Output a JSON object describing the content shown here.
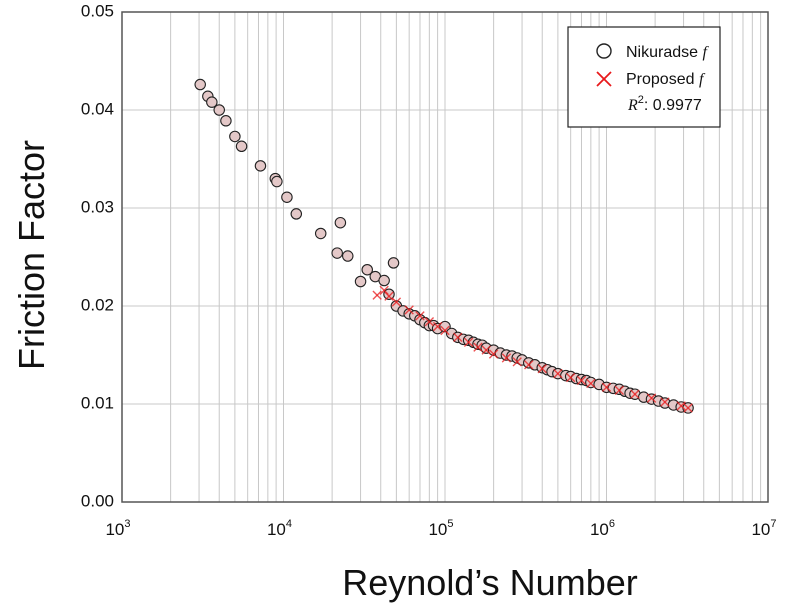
{
  "chart_data": {
    "type": "scatter",
    "xlabel": "Reynold’s Number",
    "ylabel": "Friction Factor",
    "x_scale": "log",
    "xlim": [
      1000,
      10000000
    ],
    "ylim": [
      0,
      0.05
    ],
    "x_ticks": [
      {
        "base": "10",
        "exp": "3"
      },
      {
        "base": "10",
        "exp": "4"
      },
      {
        "base": "10",
        "exp": "5"
      },
      {
        "base": "10",
        "exp": "6"
      },
      {
        "base": "10",
        "exp": "7"
      }
    ],
    "y_ticks": [
      "0.00",
      "0.01",
      "0.02",
      "0.03",
      "0.04",
      "0.05"
    ],
    "y_tick_values": [
      0,
      0.01,
      0.02,
      0.03,
      0.04,
      0.05
    ],
    "grid": true,
    "legend": {
      "position": "top-right",
      "nikuradse_label": "Nikuradse",
      "nikuradse_symbol": "f",
      "proposed_label": "Proposed",
      "proposed_symbol": "f",
      "r2_symbol": "R",
      "r2_power": "2",
      "r2_value": ": 0.9977"
    },
    "colors": {
      "nikuradse": "#222222",
      "nikuradse_fill": "#e4c8c8",
      "proposed": "#e8191b",
      "grid": "#c8c8c8"
    },
    "series": [
      {
        "name": "Nikuradse f",
        "marker": "circle",
        "x": [
          3050,
          3400,
          3600,
          4000,
          4400,
          5000,
          5500,
          7200,
          8900,
          9100,
          10500,
          12000,
          17000,
          21500,
          22500,
          25000,
          30000,
          33000,
          37000,
          42000,
          45000,
          48000,
          50000,
          55000,
          60000,
          65000,
          70000,
          75000,
          80000,
          85000,
          90000,
          100000,
          110000,
          120000,
          130000,
          140000,
          150000,
          160000,
          170000,
          180000,
          200000,
          220000,
          240000,
          260000,
          280000,
          300000,
          330000,
          360000,
          400000,
          430000,
          460000,
          500000,
          560000,
          600000,
          650000,
          700000,
          750000,
          800000,
          900000,
          1000000,
          1100000,
          1200000,
          1300000,
          1400000,
          1500000,
          1700000,
          1900000,
          2100000,
          2300000,
          2600000,
          2900000,
          3200000
        ],
        "y": [
          0.0426,
          0.0414,
          0.0408,
          0.04,
          0.0389,
          0.0373,
          0.0363,
          0.0343,
          0.033,
          0.0327,
          0.0311,
          0.0294,
          0.0274,
          0.0254,
          0.0285,
          0.0251,
          0.0225,
          0.0237,
          0.023,
          0.0226,
          0.0212,
          0.0244,
          0.02,
          0.0195,
          0.0192,
          0.019,
          0.0186,
          0.0183,
          0.018,
          0.018,
          0.0177,
          0.0179,
          0.0172,
          0.0168,
          0.0166,
          0.0165,
          0.0163,
          0.0161,
          0.016,
          0.0157,
          0.0155,
          0.0152,
          0.015,
          0.0149,
          0.0147,
          0.0145,
          0.0142,
          0.014,
          0.0137,
          0.0135,
          0.0133,
          0.0131,
          0.0129,
          0.0128,
          0.0126,
          0.0125,
          0.0124,
          0.0122,
          0.012,
          0.0117,
          0.0116,
          0.0115,
          0.0113,
          0.0111,
          0.011,
          0.0107,
          0.0105,
          0.0103,
          0.0101,
          0.0099,
          0.0097,
          0.0096
        ]
      },
      {
        "name": "Proposed f",
        "marker": "x",
        "x": [
          38000,
          42000,
          45000,
          50000,
          60000,
          70000,
          80000,
          90000,
          100000,
          120000,
          140000,
          160000,
          180000,
          200000,
          240000,
          280000,
          330000,
          400000,
          500000,
          600000,
          700000,
          800000,
          1000000,
          1200000,
          1500000,
          1900000,
          2300000,
          2900000,
          3200000
        ],
        "y": [
          0.0211,
          0.0216,
          0.021,
          0.0204,
          0.0196,
          0.019,
          0.0184,
          0.0179,
          0.0175,
          0.0168,
          0.0163,
          0.0158,
          0.0155,
          0.0151,
          0.0147,
          0.0143,
          0.014,
          0.0136,
          0.0131,
          0.0127,
          0.0124,
          0.0121,
          0.0117,
          0.0114,
          0.011,
          0.0106,
          0.0102,
          0.0098,
          0.0096
        ]
      }
    ]
  }
}
